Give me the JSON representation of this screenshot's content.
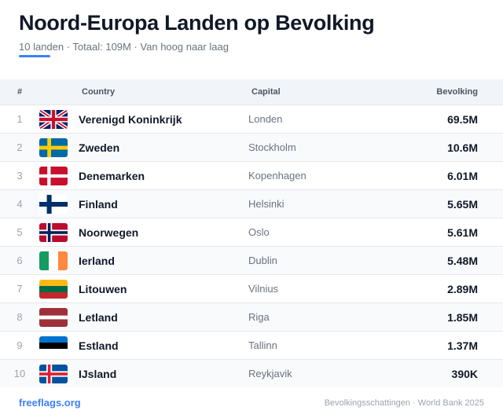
{
  "header": {
    "title": "Noord-Europa Landen op Bevolking",
    "subtitle": "10 landen · Totaal: 109M · Van hoog naar laag"
  },
  "colors": {
    "accent": "#3b82f6",
    "header_bg": "#f1f4f8"
  },
  "table": {
    "columns": {
      "num": "#",
      "country": "Country",
      "capital": "Capital",
      "population": "Bevolking"
    },
    "rows": [
      {
        "rank": "1",
        "flag": "uk-flag-icon",
        "country": "Verenigd Koninkrijk",
        "capital": "Londen",
        "population": "69.5M"
      },
      {
        "rank": "2",
        "flag": "sweden-flag-icon",
        "country": "Zweden",
        "capital": "Stockholm",
        "population": "10.6M"
      },
      {
        "rank": "3",
        "flag": "denmark-flag-icon",
        "country": "Denemarken",
        "capital": "Kopenhagen",
        "population": "6.01M"
      },
      {
        "rank": "4",
        "flag": "finland-flag-icon",
        "country": "Finland",
        "capital": "Helsinki",
        "population": "5.65M"
      },
      {
        "rank": "5",
        "flag": "norway-flag-icon",
        "country": "Noorwegen",
        "capital": "Oslo",
        "population": "5.61M"
      },
      {
        "rank": "6",
        "flag": "ireland-flag-icon",
        "country": "Ierland",
        "capital": "Dublin",
        "population": "5.48M"
      },
      {
        "rank": "7",
        "flag": "lithuania-flag-icon",
        "country": "Litouwen",
        "capital": "Vilnius",
        "population": "2.89M"
      },
      {
        "rank": "8",
        "flag": "latvia-flag-icon",
        "country": "Letland",
        "capital": "Riga",
        "population": "1.85M"
      },
      {
        "rank": "9",
        "flag": "estonia-flag-icon",
        "country": "Estland",
        "capital": "Tallinn",
        "population": "1.37M"
      },
      {
        "rank": "10",
        "flag": "iceland-flag-icon",
        "country": "IJsland",
        "capital": "Reykjavik",
        "population": "390K"
      }
    ]
  },
  "footer": {
    "brand": "freeflags.org",
    "source": "Bevolkingsschattingen · World Bank 2025"
  }
}
